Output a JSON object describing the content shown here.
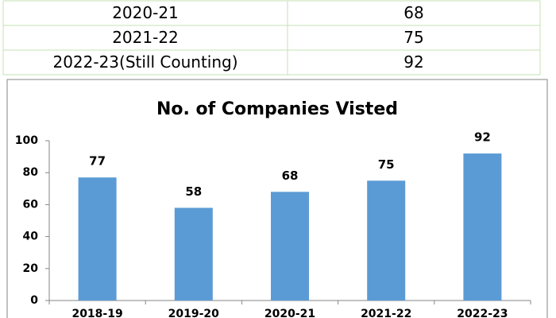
{
  "table": {
    "rows": [
      [
        "2020-21",
        "68"
      ],
      [
        "2021-22",
        "75"
      ],
      [
        "2022-23(Still Counting)",
        "92"
      ]
    ]
  },
  "chart_data": {
    "type": "bar",
    "title": "No. of Companies Visted",
    "categories": [
      "2018-19",
      "2019-20",
      "2020-21",
      "2021-22",
      "2022-23"
    ],
    "values": [
      77,
      58,
      68,
      75,
      92
    ],
    "color": "#5b9bd5",
    "ylim": [
      0,
      100
    ],
    "yticks": [
      0,
      20,
      40,
      60,
      80,
      100
    ],
    "grid": false
  }
}
